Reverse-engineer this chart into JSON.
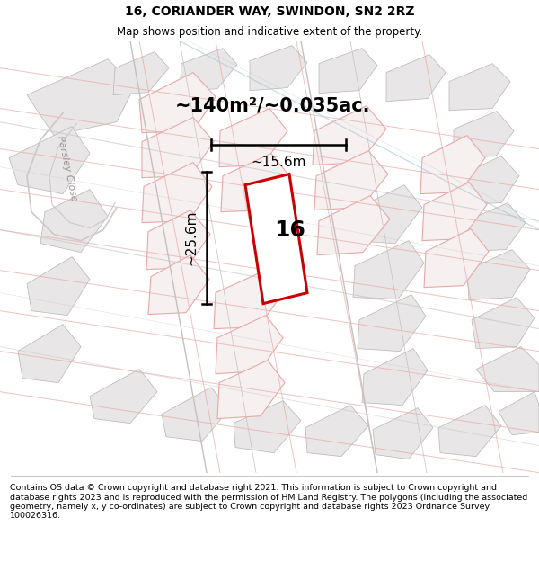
{
  "title": "16, CORIANDER WAY, SWINDON, SN2 2RZ",
  "subtitle": "Map shows position and indicative extent of the property.",
  "area_label": "~140m²/~0.035ac.",
  "plot_number": "16",
  "dim_width": "~15.6m",
  "dim_height": "~25.6m",
  "street_label": "Parsley Close",
  "footer_text": "Contains OS data © Crown copyright and database right 2021. This information is subject to Crown copyright and database rights 2023 and is reproduced with the permission of HM Land Registry. The polygons (including the associated geometry, namely x, y co-ordinates) are subject to Crown copyright and database rights 2023 Ordnance Survey 100026316.",
  "map_bg": "#f7f4f4",
  "title_fontsize": 10,
  "subtitle_fontsize": 8.5,
  "footer_fontsize": 6.8
}
